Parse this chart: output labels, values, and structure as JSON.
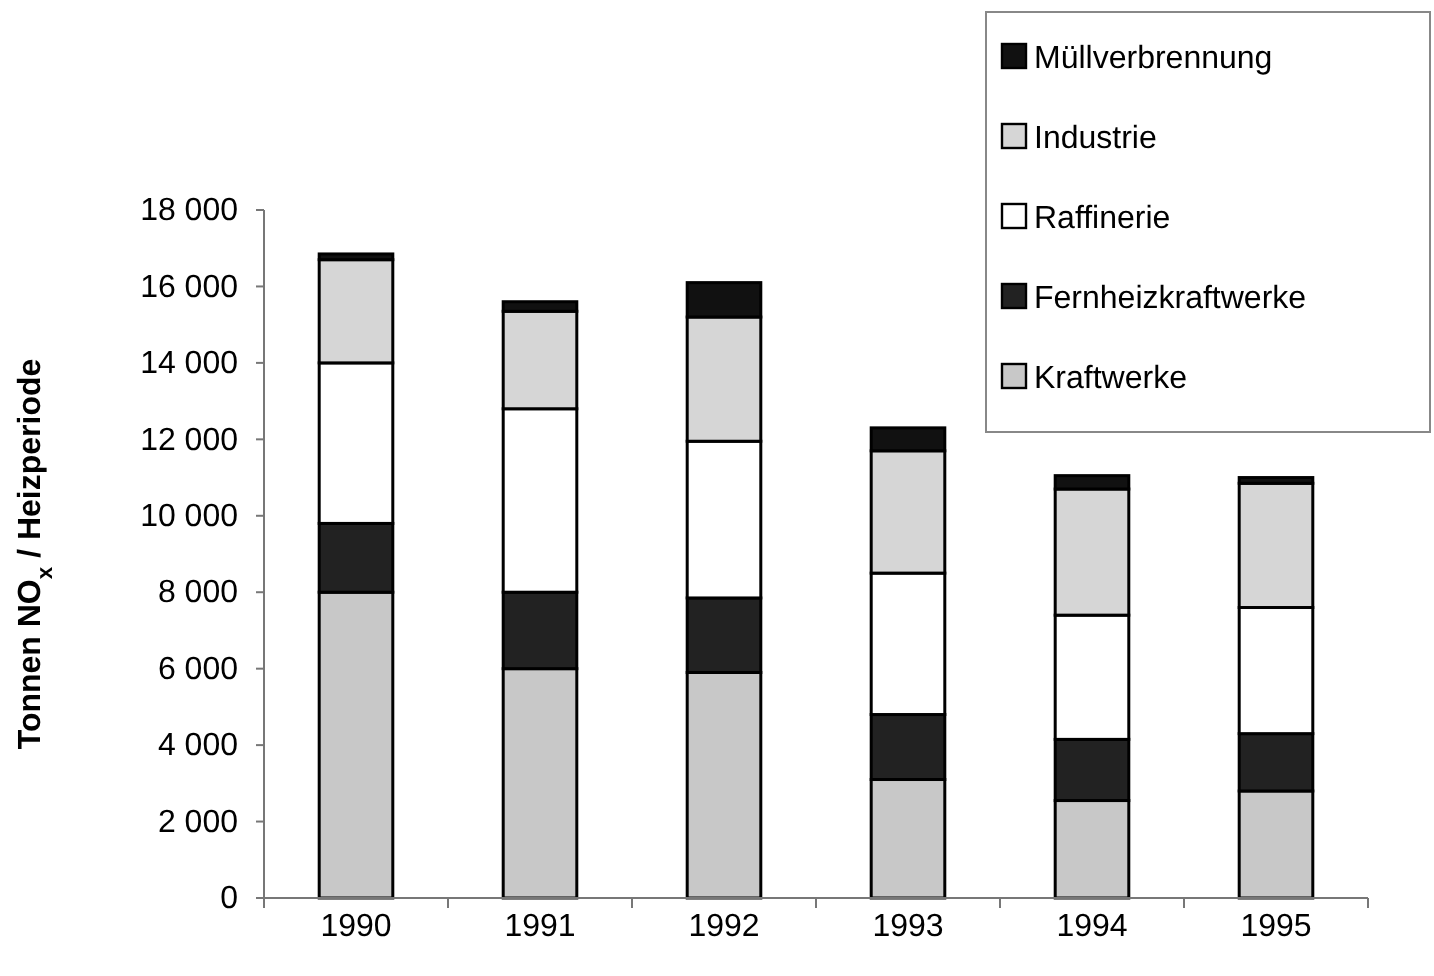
{
  "chart_data": {
    "type": "bar",
    "stacked": true,
    "ylabel": "Tonnen NO$_{x}$ / Heizperiode",
    "categories": [
      "1990",
      "1991",
      "1992",
      "1993",
      "1994",
      "1995"
    ],
    "series": [
      {
        "name": "Kraftwerke",
        "color": "#c8c8c8",
        "values": [
          8000,
          6000,
          5900,
          3100,
          2550,
          2800
        ]
      },
      {
        "name": "Fernheizkraftwerke",
        "color": "#222222",
        "values": [
          1800,
          2000,
          1950,
          1700,
          1600,
          1500
        ]
      },
      {
        "name": "Raffinerie",
        "color": "#ffffff",
        "values": [
          4200,
          4800,
          4100,
          3700,
          3250,
          3300
        ]
      },
      {
        "name": "Industrie",
        "color": "#d6d6d6",
        "values": [
          2700,
          2550,
          3250,
          3200,
          3300,
          3250
        ]
      },
      {
        "name": "Müllverbrennung",
        "color": "#111111",
        "values": [
          150,
          250,
          900,
          600,
          350,
          150
        ]
      }
    ],
    "ylim": [
      0,
      18000
    ],
    "yticks": [
      0,
      {
        "value": 2000,
        "label": "2 000"
      },
      {
        "value": 4000,
        "label": "4 000"
      },
      {
        "value": 6000,
        "label": "6 000"
      },
      {
        "value": 8000,
        "label": "8 000"
      },
      {
        "value": 10000,
        "label": "10 000"
      },
      {
        "value": 12000,
        "label": "12 000"
      },
      {
        "value": 14000,
        "label": "14 000"
      },
      {
        "value": 16000,
        "label": "16 000"
      },
      {
        "value": 18000,
        "label": "18 000"
      }
    ],
    "grid": false,
    "legend": "top right"
  }
}
